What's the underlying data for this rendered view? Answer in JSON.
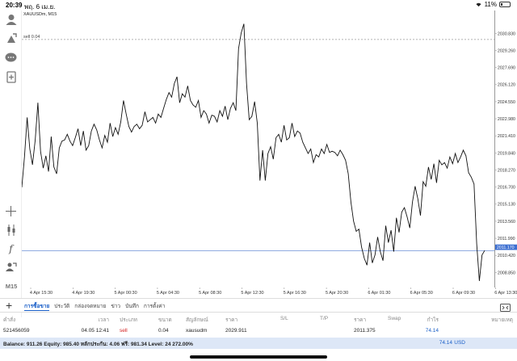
{
  "status_bar": {
    "time": "20:39",
    "date": "พฤ. 6 เม.ย.",
    "battery": "11%"
  },
  "chart": {
    "title": "XAUUSDm, M15",
    "sell_label": "sell 0.04",
    "current_price": "2011.170",
    "timeframe_label": "M15"
  },
  "chart_data": {
    "type": "line",
    "price_ticks": [
      "2030.830",
      "2029.260",
      "2027.690",
      "2026.120",
      "2024.550",
      "2022.980",
      "2021.410",
      "2019.840",
      "2018.270",
      "2016.700",
      "2015.130",
      "2013.560",
      "2011.990",
      "2010.420",
      "2008.850"
    ],
    "time_ticks": [
      "4 Apr 15:30",
      "4 Apr 19:30",
      "5 Apr 00:30",
      "5 Apr 04:30",
      "5 Apr 08:30",
      "5 Apr 12:30",
      "5 Apr 16:30",
      "5 Apr 20:30",
      "6 Apr 01:30",
      "6 Apr 05:30",
      "6 Apr 09:30",
      "6 Apr 13:30"
    ],
    "ylim": [
      2007.92,
      2032.48
    ],
    "sell_line": 2029.911,
    "bid_line": 2011.17,
    "close": [
      2016.8,
      2019.5,
      2023.0,
      2020.2,
      2018.8,
      2021.0,
      2024.3,
      2020.0,
      2018.5,
      2019.6,
      2018.2,
      2021.3,
      2018.6,
      2018.0,
      2020.3,
      2020.9,
      2021.0,
      2021.5,
      2020.9,
      2020.5,
      2021.2,
      2022.0,
      2020.5,
      2021.8,
      2020.1,
      2020.5,
      2021.8,
      2022.4,
      2021.9,
      2021.0,
      2020.3,
      2021.4,
      2020.8,
      2022.5,
      2021.3,
      2022.1,
      2021.5,
      2022.6,
      2024.5,
      2023.3,
      2022.2,
      2021.7,
      2022.2,
      2022.4,
      2022.0,
      2022.3,
      2023.5,
      2022.6,
      2022.8,
      2023.0,
      2022.5,
      2023.3,
      2023.0,
      2023.8,
      2024.6,
      2025.2,
      2024.8,
      2026.0,
      2026.6,
      2024.3,
      2025.1,
      2024.8,
      2025.8,
      2024.5,
      2024.1,
      2023.9,
      2024.5,
      2023.0,
      2023.6,
      2023.3,
      2022.5,
      2023.2,
      2023.1,
      2022.6,
      2023.6,
      2023.1,
      2024.0,
      2022.8,
      2023.8,
      2024.3,
      2023.6,
      2029.1,
      2030.5,
      2031.3,
      2026.0,
      2022.8,
      2023.1,
      2024.4,
      2022.5,
      2017.4,
      2020.1,
      2017.4,
      2019.8,
      2020.4,
      2019.3,
      2021.2,
      2021.5,
      2020.8,
      2022.3,
      2021.0,
      2021.2,
      2022.5,
      2021.3,
      2021.8,
      2021.6,
      2020.8,
      2020.3,
      2019.8,
      2020.2,
      2019.0,
      2019.7,
      2019.5,
      2020.2,
      2019.8,
      2020.6,
      2019.9,
      2020.0,
      2019.9,
      2019.6,
      2020.1,
      2019.7,
      2019.2,
      2018.0,
      2015.5,
      2013.8,
      2012.9,
      2013.1,
      2011.5,
      2010.5,
      2009.9,
      2011.9,
      2010.1,
      2010.8,
      2012.4,
      2011.1,
      2010.3,
      2013.4,
      2011.9,
      2013.0,
      2011.1,
      2014.1,
      2012.8,
      2014.6,
      2015.0,
      2014.2,
      2013.2,
      2015.5,
      2016.9,
      2015.8,
      2014.3,
      2017.3,
      2016.9,
      2018.6,
      2017.5,
      2018.9,
      2017.2,
      2019.2,
      2018.8,
      2019.0,
      2018.5,
      2019.5,
      2018.9,
      2019.8,
      2019.0,
      2019.5,
      2020.1,
      2019.6,
      2018.1,
      2017.7,
      2017.1,
      2011.8,
      2008.5,
      2010.8,
      2011.2
    ],
    "xlabel": "",
    "ylabel": "",
    "grid": false
  },
  "bottom_panel": {
    "tabs": [
      {
        "label": "การซื้อขาย",
        "active": true
      },
      {
        "label": "ประวัติ",
        "active": false
      },
      {
        "label": "กล่องจดหมาย",
        "active": false
      },
      {
        "label": "ข่าว",
        "active": false
      },
      {
        "label": "บันทึก",
        "active": false
      },
      {
        "label": "การตั้งค่า",
        "active": false
      }
    ],
    "columns": [
      "คำสั่ง",
      "เวลา",
      "ประเภท",
      "ขนาด",
      "สัญลักษณ์",
      "ราคา",
      "S/L",
      "T/P",
      "ราคา",
      "Swap",
      "กำไร",
      "หมายเหตุ"
    ],
    "row": {
      "order": "521456059",
      "time": "04.05 12:41",
      "type": "sell",
      "size": "0.04",
      "symbol": "xausudm",
      "open_price": "2029.911",
      "sl": "",
      "tp": "",
      "price": "2011.375",
      "swap": "",
      "profit": "74.14",
      "comment": ""
    },
    "balance_line": "Balance: 911.26 Equity: 985.40 หลักประกัน: 4.06 ฟรี: 981.34 Level: 24 272.00%",
    "total_profit": "74.14",
    "currency": "USD"
  }
}
